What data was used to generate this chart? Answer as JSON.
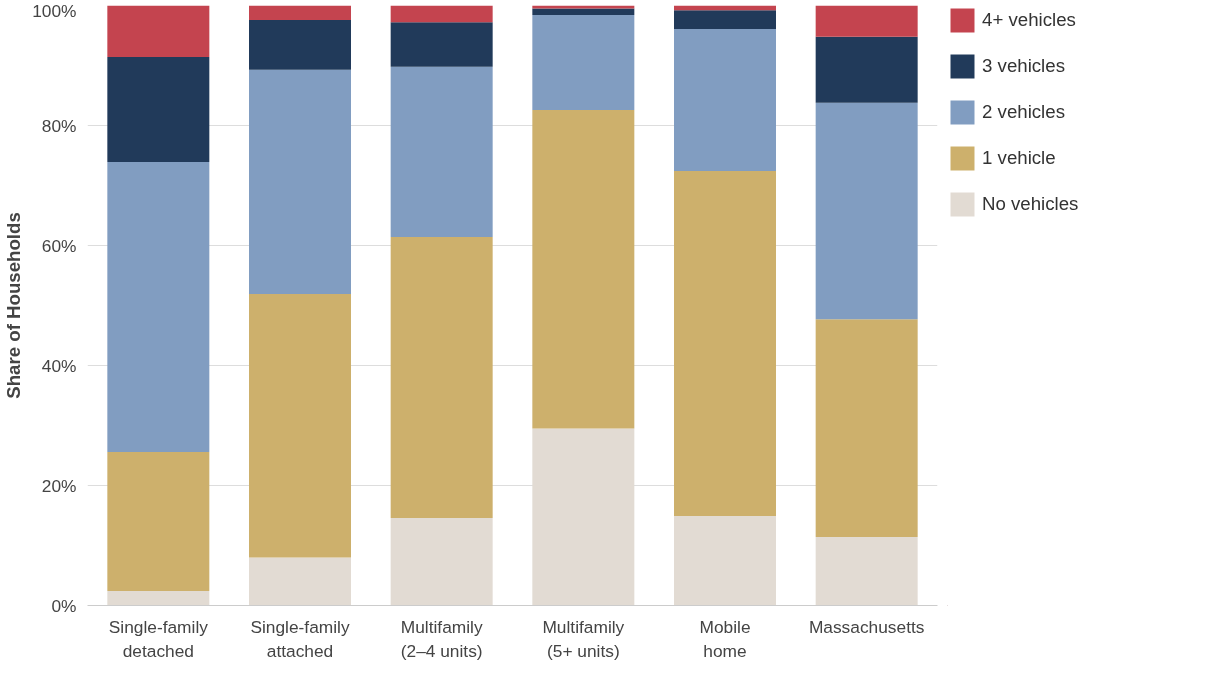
{
  "chart_data": {
    "type": "bar",
    "stacked": true,
    "ylabel": "Share of Households",
    "categories": [
      "Single-family\ndetached",
      "Single-family\nattached",
      "Multifamily\n(2–4 units)",
      "Multifamily\n(5+ units)",
      "Mobile\nhome",
      "Massachusetts"
    ],
    "series": [
      {
        "name": "No vehicles",
        "color": "#e2dbd3",
        "values": [
          2.4,
          8.0,
          14.6,
          29.5,
          14.9,
          11.4
        ]
      },
      {
        "name": "1 vehicle",
        "color": "#cdb06c",
        "values": [
          23.2,
          43.9,
          46.8,
          53.1,
          57.5,
          36.3
        ]
      },
      {
        "name": "2 vehicles",
        "color": "#819dc1",
        "values": [
          48.3,
          37.4,
          28.4,
          15.8,
          23.7,
          36.1
        ]
      },
      {
        "name": "3 vehicles",
        "color": "#213a5a",
        "values": [
          17.5,
          8.3,
          7.4,
          1.1,
          3.1,
          11.0
        ]
      },
      {
        "name": "4+ vehicles",
        "color": "#c4444f",
        "values": [
          8.6,
          2.4,
          2.8,
          0.5,
          0.8,
          5.2
        ]
      }
    ],
    "ylim": [
      0,
      100
    ],
    "yticks": [
      {
        "value": 0,
        "label": "0%"
      },
      {
        "value": 20,
        "label": "20%"
      },
      {
        "value": 40,
        "label": "40%"
      },
      {
        "value": 60,
        "label": "60%"
      },
      {
        "value": 80,
        "label": "80%"
      },
      {
        "value": 100,
        "label": "100%"
      }
    ],
    "grid": "y",
    "legend": "top right"
  }
}
